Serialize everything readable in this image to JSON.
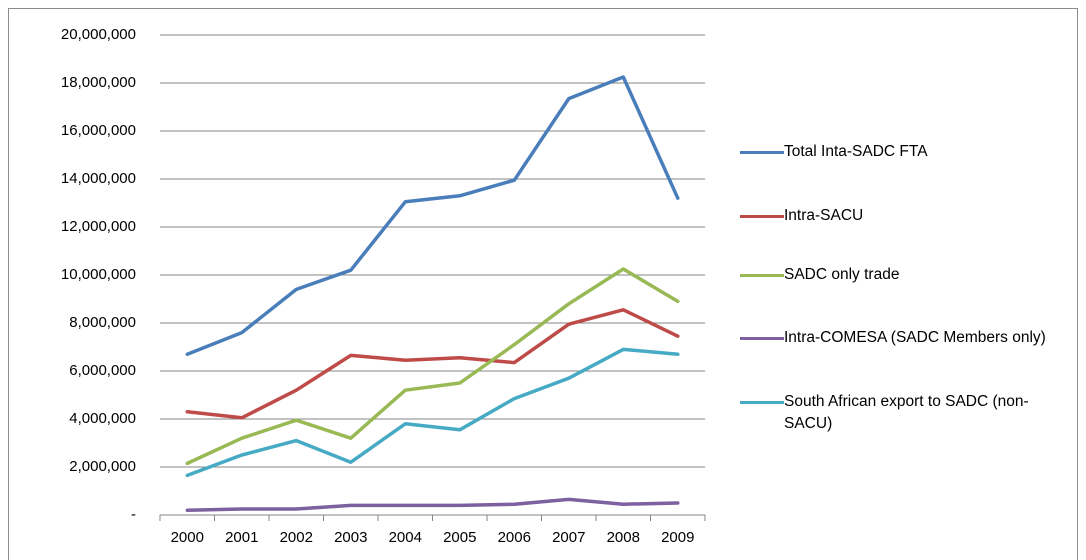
{
  "chart_data": {
    "type": "line",
    "categories": [
      "2000",
      "2001",
      "2002",
      "2003",
      "2004",
      "2005",
      "2006",
      "2007",
      "2008",
      "2009"
    ],
    "series": [
      {
        "name": "Total Inta-SADC FTA",
        "color": "#4a7ebb",
        "values": [
          6700000,
          7600000,
          9400000,
          10200000,
          13050000,
          13300000,
          13950000,
          17350000,
          18250000,
          13200000
        ]
      },
      {
        "name": "Intra-SACU",
        "color": "#be4b48",
        "values": [
          4300000,
          4050000,
          5200000,
          6650000,
          6450000,
          6550000,
          6350000,
          7950000,
          8550000,
          7450000
        ]
      },
      {
        "name": "SADC only trade",
        "color": "#98b954",
        "values": [
          2150000,
          3200000,
          3950000,
          3200000,
          5200000,
          5500000,
          7100000,
          8800000,
          10250000,
          8900000
        ]
      },
      {
        "name": "Intra-COMESA (SADC Members only)",
        "color": "#7d60a0",
        "values": [
          200000,
          250000,
          250000,
          400000,
          400000,
          400000,
          450000,
          650000,
          450000,
          500000
        ]
      },
      {
        "name": "South African export to SADC (non-SACU)",
        "color": "#46aac5",
        "values": [
          1650000,
          2500000,
          3100000,
          2200000,
          3800000,
          3550000,
          4850000,
          5700000,
          6900000,
          6700000
        ]
      }
    ],
    "ylim": [
      0,
      20000000
    ],
    "yticks": [
      {
        "value": 0,
        "label": "-"
      },
      {
        "value": 2000000,
        "label": "2,000,000"
      },
      {
        "value": 4000000,
        "label": "4,000,000"
      },
      {
        "value": 6000000,
        "label": "6,000,000"
      },
      {
        "value": 8000000,
        "label": "8,000,000"
      },
      {
        "value": 10000000,
        "label": "10,000,000"
      },
      {
        "value": 12000000,
        "label": "12,000,000"
      },
      {
        "value": 14000000,
        "label": "14,000,000"
      },
      {
        "value": 16000000,
        "label": "16,000,000"
      },
      {
        "value": 18000000,
        "label": "18,000,000"
      },
      {
        "value": 20000000,
        "label": "20,000,000"
      }
    ],
    "grid": true,
    "legend": "right"
  }
}
